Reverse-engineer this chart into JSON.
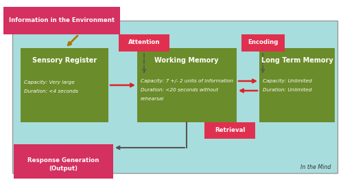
{
  "outer_bg": "#FFFFFF",
  "cyan_color": "#A8DDDD",
  "cyan_edge": "#999999",
  "green_color": "#6B8C2A",
  "red_color": "#D43060",
  "red_label_color": "#E03050",
  "red_arrow_color": "#DD2222",
  "gold_arrow_color": "#AA7700",
  "dark_arrow_color": "#555555",
  "sensory_title": "Sensory Register",
  "sensory_cap": "Capacity: Very large",
  "sensory_dur": "Duration: <4 seconds",
  "working_title": "Working Memory",
  "working_cap": "Capacity: 7 +/- 2 units of information",
  "working_dur1": "Duration: <20 seconds without",
  "working_dur2": "rehearsal",
  "ltm_title": "Long Term Memory",
  "ltm_cap": "Capacity: Unlimited",
  "ltm_dur": "Duration: Unlimited",
  "env_label": "Information in the Environment",
  "attention_label": "Attention",
  "encoding_label": "Encoding",
  "retrieval_label": "Retrieval",
  "response_label": "Response Generation\n(Output)",
  "in_mind_label": "In the Mind"
}
